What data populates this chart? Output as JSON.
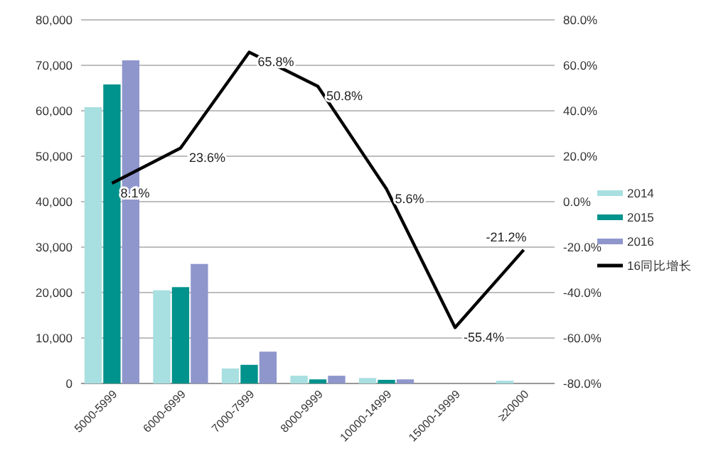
{
  "chart_data": {
    "type": "bar",
    "categories": [
      "5000-5999",
      "6000-6999",
      "7000-7999",
      "8000-9999",
      "10000-14999",
      "15000-19999",
      "≥20000"
    ],
    "series": [
      {
        "name": "2014",
        "color": "#a8dfe0",
        "values": [
          60800,
          20500,
          3300,
          1700,
          1200,
          null,
          600
        ]
      },
      {
        "name": "2015",
        "color": "#00928c",
        "values": [
          65800,
          21200,
          4100,
          900,
          800,
          null,
          null
        ]
      },
      {
        "name": "2016",
        "color": "#8e96cc",
        "values": [
          71100,
          26300,
          7000,
          1700,
          900,
          null,
          null
        ]
      },
      {
        "name": "16同比增长",
        "type": "line",
        "axis": "y2",
        "color": "#000000",
        "values": [
          8.1,
          23.6,
          65.8,
          50.8,
          5.6,
          -55.4,
          -21.2
        ],
        "value_labels": [
          "8.1%",
          "23.6%",
          "65.8%",
          "50.8%",
          "5.6%",
          "-55.4%",
          "-21.2%"
        ]
      }
    ],
    "ylim": [
      0,
      80000
    ],
    "yticks": [
      {
        "value": 0,
        "label": "0"
      },
      {
        "value": 10000,
        "label": "10,000"
      },
      {
        "value": 20000,
        "label": "20,000"
      },
      {
        "value": 30000,
        "label": "30,000"
      },
      {
        "value": 40000,
        "label": "40,000"
      },
      {
        "value": 50000,
        "label": "50,000"
      },
      {
        "value": 60000,
        "label": "60,000"
      },
      {
        "value": 70000,
        "label": "70,000"
      },
      {
        "value": 80000,
        "label": "80,000"
      }
    ],
    "y2lim": [
      -80,
      80
    ],
    "y2ticks": [
      {
        "value": -80,
        "label": "-80.0%"
      },
      {
        "value": -60,
        "label": "-60.0%"
      },
      {
        "value": -40,
        "label": "-40.0%"
      },
      {
        "value": -20,
        "label": "-20.0%"
      },
      {
        "value": 0,
        "label": "0.0%"
      },
      {
        "value": 20,
        "label": "20.0%"
      },
      {
        "value": 40,
        "label": "40.0%"
      },
      {
        "value": 60,
        "label": "60.0%"
      },
      {
        "value": 80,
        "label": "80.0%"
      }
    ],
    "grid": "y",
    "legend": "right",
    "line_style": "solid",
    "marker": "none"
  }
}
